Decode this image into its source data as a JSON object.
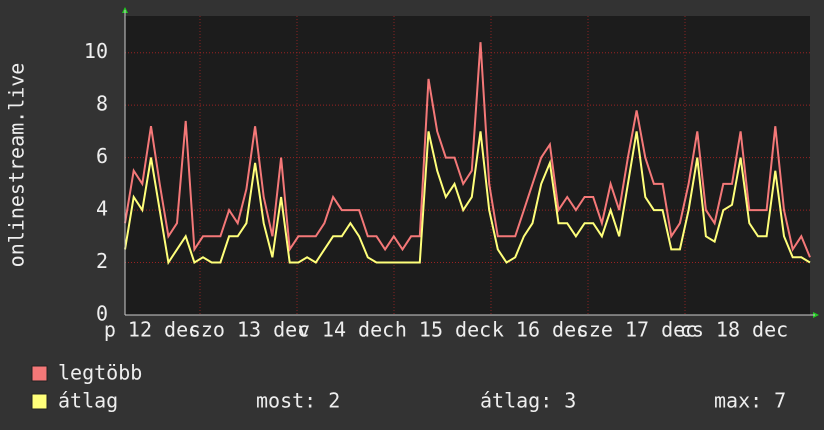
{
  "chart_data": {
    "type": "line",
    "y_label": "onlinestream.live",
    "x_labels": [
      "p 12 dec",
      "szo 13 dec",
      "v 14 dec",
      "h 15 dec",
      "k 16 dec",
      "sze 17 dec",
      "cs 18 dec"
    ],
    "ylim": [
      0,
      11.4
    ],
    "yticks": [
      0,
      2,
      4,
      6,
      8,
      10
    ],
    "grid": true,
    "series": [
      {
        "name": "legtöbb",
        "color": "#f47878",
        "values": [
          3.5,
          5.5,
          5,
          7.2,
          5,
          3,
          3.5,
          7.4,
          2.5,
          3,
          3,
          3,
          4,
          3.5,
          4.8,
          7.2,
          4.5,
          3,
          6,
          2.5,
          3,
          3,
          3,
          3.5,
          4.5,
          4,
          4,
          4,
          3,
          3,
          2.5,
          3,
          2.5,
          3,
          3,
          9,
          7,
          6,
          6,
          5,
          5.5,
          10.4,
          5,
          3,
          3,
          3,
          4,
          5,
          6,
          6.5,
          4,
          4.5,
          4,
          4.5,
          4.5,
          3.5,
          5,
          4,
          6,
          7.8,
          6,
          5,
          5,
          3,
          3.5,
          5,
          7,
          4,
          3.5,
          5,
          5,
          7,
          4,
          4,
          4,
          7.2,
          4,
          2.5,
          3,
          2.2
        ]
      },
      {
        "name": "átlag",
        "color": "#ffff7a",
        "values": [
          2.5,
          4.5,
          4,
          6,
          4,
          2,
          2.5,
          3,
          2,
          2.2,
          2,
          2,
          3,
          3,
          3.5,
          5.8,
          3.5,
          2.2,
          4.5,
          2,
          2,
          2.2,
          2,
          2.5,
          3,
          3,
          3.5,
          3,
          2.2,
          2,
          2,
          2,
          2,
          2,
          2,
          7,
          5.5,
          4.5,
          5,
          4,
          4.5,
          7,
          4,
          2.5,
          2,
          2.2,
          3,
          3.5,
          5,
          5.8,
          3.5,
          3.5,
          3,
          3.5,
          3.5,
          3,
          4,
          3,
          5,
          7,
          4.5,
          4,
          4,
          2.5,
          2.5,
          4,
          6,
          3,
          2.8,
          4,
          4.2,
          6,
          3.5,
          3,
          3,
          5.5,
          3,
          2.2,
          2.2,
          2
        ]
      }
    ],
    "stats": [
      {
        "label": "most:",
        "value": 2
      },
      {
        "label": "átlag:",
        "value": 3
      },
      {
        "label": "max:",
        "value": 7
      }
    ]
  }
}
